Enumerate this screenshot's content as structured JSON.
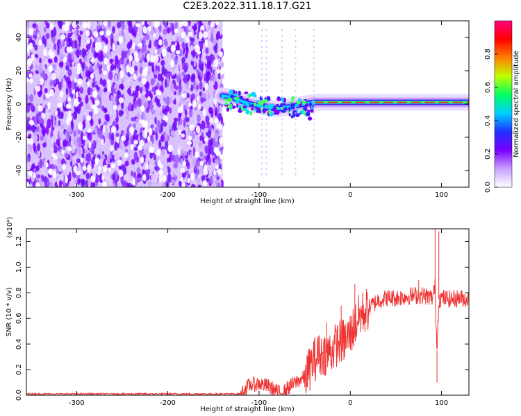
{
  "title": "C2E3.2022.311.18.17.G21",
  "chart_data": [
    {
      "type": "heatmap",
      "xlabel": "Height of straight line (km)",
      "ylabel": "Frequency (Hz)",
      "xlim": [
        -355,
        130
      ],
      "ylim": [
        -50,
        50
      ],
      "xticks": [
        "-300",
        "-200",
        "-100",
        "0",
        "100"
      ],
      "xtick_values": [
        -300,
        -200,
        -100,
        0,
        100
      ],
      "yticks": [
        "-40",
        "-20",
        "0",
        "20",
        "40"
      ],
      "ytick_values": [
        -40,
        -20,
        0,
        20,
        40
      ],
      "noise_region_x": [
        -355,
        -140
      ],
      "doppler_trace": [
        {
          "x": -140,
          "y": 5
        },
        {
          "x": -130,
          "y": 4
        },
        {
          "x": -120,
          "y": 2
        },
        {
          "x": -110,
          "y": 0
        },
        {
          "x": -100,
          "y": -1
        },
        {
          "x": -90,
          "y": -2
        },
        {
          "x": -80,
          "y": -3
        },
        {
          "x": -70,
          "y": -2
        },
        {
          "x": -60,
          "y": -1
        },
        {
          "x": -50,
          "y": 0
        },
        {
          "x": -40,
          "y": 1
        },
        {
          "x": -30,
          "y": 1
        },
        {
          "x": -20,
          "y": 1
        },
        {
          "x": 0,
          "y": 1
        },
        {
          "x": 50,
          "y": 1
        },
        {
          "x": 100,
          "y": 1
        },
        {
          "x": 130,
          "y": 1
        }
      ],
      "colorbar": {
        "label": "Normalized spectral amplitude",
        "ticks": [
          "0.0",
          "0.2",
          "0.4",
          "0.6",
          "0.8"
        ],
        "tick_values": [
          0,
          0.2,
          0.4,
          0.6,
          0.8
        ],
        "range": [
          0,
          1
        ],
        "colors": [
          "#ffffff",
          "#c8a0ff",
          "#7a00ff",
          "#2030ff",
          "#00d0ff",
          "#00ff60",
          "#c0ff00",
          "#ff8000",
          "#ff0000",
          "#ff0080"
        ]
      }
    },
    {
      "type": "line",
      "xlabel": "Height of straight line (km)",
      "ylabel": "SNR (10 * v/v)",
      "scale_label": "(x10⁴)",
      "xlim": [
        -355,
        130
      ],
      "ylim": [
        0,
        1.3
      ],
      "xticks": [
        "-300",
        "-200",
        "-100",
        "0",
        "100"
      ],
      "xtick_values": [
        -300,
        -200,
        -100,
        0,
        100
      ],
      "yticks": [
        "0.0",
        "0.2",
        "0.4",
        "0.6",
        "0.8",
        "1.0",
        "1.2"
      ],
      "ytick_values": [
        0,
        0.2,
        0.4,
        0.6,
        0.8,
        1.0,
        1.2
      ],
      "line_color": "#ee3333",
      "series": [
        {
          "x": [
            -355,
            -300,
            -250,
            -200,
            -150,
            -120,
            -115,
            -110,
            -100,
            -90,
            -80,
            -75,
            -70,
            -60,
            -50,
            -45,
            -40,
            -35,
            -30,
            -25,
            -20,
            -15,
            -10,
            -5,
            0,
            5,
            10,
            20,
            30,
            40,
            50,
            60,
            70,
            80,
            90,
            93,
            95,
            97,
            100,
            110,
            120,
            130
          ],
          "values": [
            0.01,
            0.01,
            0.01,
            0.01,
            0.01,
            0.01,
            0.05,
            0.08,
            0.09,
            0.07,
            0.03,
            0.0,
            0.05,
            0.1,
            0.14,
            0.2,
            0.28,
            0.3,
            0.33,
            0.33,
            0.35,
            0.4,
            0.42,
            0.43,
            0.48,
            0.55,
            0.62,
            0.68,
            0.74,
            0.76,
            0.76,
            0.77,
            0.78,
            0.78,
            0.76,
            0.85,
            0.35,
            0.75,
            0.76,
            0.75,
            0.76,
            0.75
          ]
        }
      ],
      "spikes": [
        {
          "x": -35,
          "y": 0.46
        },
        {
          "x": -26,
          "y": 0.57
        },
        {
          "x": -10,
          "y": 0.7
        },
        {
          "x": 5,
          "y": 0.87
        },
        {
          "x": 75,
          "y": 0.9
        },
        {
          "x": 93,
          "y": 1.32
        },
        {
          "x": 95,
          "y": 0.1
        },
        {
          "x": 97,
          "y": 1.28
        }
      ]
    }
  ]
}
